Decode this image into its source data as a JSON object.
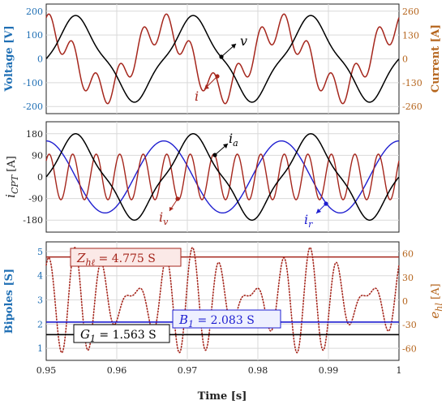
{
  "chart_data": [
    {
      "type": "line",
      "panel": "top",
      "ylabel_left": "Voltage [V]",
      "ylabel_right": "Current [A]",
      "x_range": [
        0.95,
        1.0
      ],
      "ylim_left": [
        -230,
        230
      ],
      "ylim_right": [
        -300,
        300
      ],
      "yticks_left": [
        "200",
        "100",
        "0",
        "-100",
        "-200"
      ],
      "yticks_right": [
        "260",
        "130",
        "0",
        "-130",
        "-260"
      ],
      "grid": true,
      "colors": {
        "left_axis": "#1f6fb4",
        "right_axis": "#b5651d",
        "voltage": "#000000",
        "current": "#a5261c"
      },
      "series": [
        {
          "name": "v",
          "frequency_hz": 60,
          "fundamental_amplitude": 160,
          "phase_deg": 0,
          "harmonic": {
            "order": 3,
            "amplitude": 22,
            "phase_deg": 180
          }
        },
        {
          "name": "i",
          "frequency_hz": 60,
          "fundamental_amplitude": 170,
          "phase_deg": 95,
          "harmonic": {
            "order": 5,
            "amplitude": 80,
            "phase_deg": 45
          }
        }
      ]
    },
    {
      "type": "line",
      "panel": "middle",
      "ylabel": "i_CPT [A]",
      "x_range": [
        0.95,
        1.0
      ],
      "ylim": [
        -230,
        230
      ],
      "yticks": [
        "180",
        "90",
        "0",
        "-90",
        "-180"
      ],
      "grid": true,
      "series": [
        {
          "name": "i_a",
          "color": "#000000"
        },
        {
          "name": "i_v",
          "color": "#a5261c"
        },
        {
          "name": "i_r",
          "color": "#1f1fd0"
        }
      ]
    },
    {
      "type": "line",
      "panel": "bottom",
      "ylabel_left": "Bipoles [S]",
      "ylabel_right": "e_hl [A]",
      "xlabel": "Time [s]",
      "x_range": [
        0.95,
        1.0
      ],
      "xticks": [
        "0.95",
        "0.96",
        "0.97",
        "0.98",
        "0.99",
        "1"
      ],
      "ylim_left": [
        0.5,
        5.4
      ],
      "ylim_right": [
        -75,
        75
      ],
      "yticks_left": [
        "5",
        "4",
        "3",
        "2",
        "1"
      ],
      "yticks_right": [
        "60",
        "30",
        "0",
        "-30",
        "-60"
      ],
      "grid": true,
      "series": [
        {
          "name": "Z_hl",
          "value": 4.775,
          "color": "#a5261c"
        },
        {
          "name": "B_1",
          "value": 2.083,
          "color": "#1f1fd0"
        },
        {
          "name": "G_1",
          "value": 1.563,
          "color": "#000000"
        },
        {
          "name": "e_hl",
          "style": "dotted",
          "color": "#a5261c"
        }
      ]
    }
  ],
  "annotations": {
    "v": "v",
    "i": "i",
    "ia_main": "i",
    "ia_sub": "a",
    "iv_main": "i",
    "iv_sub": "v",
    "ir_main": "i",
    "ir_sub": "r",
    "ylab_mid_main": "i",
    "ylab_mid_sub": "CPT",
    "ylab_mid_unit": " [A]",
    "ylab_ehl_main": "e",
    "ylab_ehl_sub": "hl",
    "ylab_ehl_unit": " [A]",
    "z_main": "Z",
    "z_sub": "hℓ",
    "z_val": " = 4.775 S",
    "b_main": "B",
    "b_sub": "1",
    "b_val": " = 2.083 S",
    "g_main": "G",
    "g_sub": "1",
    "g_val": " = 1.563 S"
  }
}
